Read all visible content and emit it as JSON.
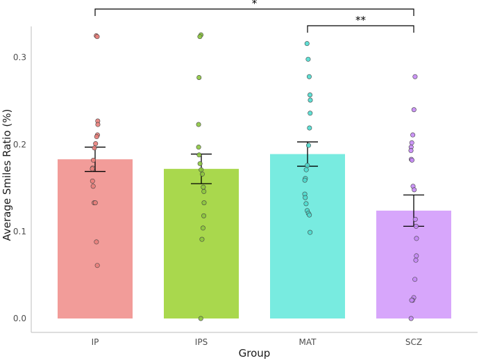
{
  "chart_data": {
    "type": "bar",
    "title": "",
    "xlabel": "Group",
    "ylabel": "Average Smiles Ratio (%)",
    "ylim": [
      0,
      0.335
    ],
    "yticks": [
      0.0,
      0.1,
      0.2,
      0.3
    ],
    "ytick_labels": [
      "0.0",
      "0.1",
      "0.2",
      "0.3"
    ],
    "grid": false,
    "categories": [
      "IP",
      "IPS",
      "MAT",
      "SCZ"
    ],
    "colors": [
      "#f29c99",
      "#a9d84d",
      "#78ebe0",
      "#d7a6fb"
    ],
    "point_colors": [
      "#e8807b",
      "#8cc63f",
      "#4fdccf",
      "#c58af5"
    ],
    "values": [
      0.183,
      0.172,
      0.189,
      0.124
    ],
    "error_low": [
      0.169,
      0.155,
      0.175,
      0.106
    ],
    "error_high": [
      0.197,
      0.189,
      0.203,
      0.142
    ],
    "points": [
      [
        0.325,
        0.324,
        0.227,
        0.223,
        0.211,
        0.209,
        0.201,
        0.196,
        0.182,
        0.173,
        0.172,
        0.158,
        0.152,
        0.133,
        0.133,
        0.088,
        0.061
      ],
      [
        0.326,
        0.324,
        0.277,
        0.223,
        0.197,
        0.188,
        0.178,
        0.171,
        0.166,
        0.151,
        0.146,
        0.133,
        0.118,
        0.104,
        0.091,
        0.0
      ],
      [
        0.316,
        0.298,
        0.278,
        0.257,
        0.251,
        0.236,
        0.219,
        0.199,
        0.176,
        0.171,
        0.161,
        0.159,
        0.143,
        0.139,
        0.132,
        0.124,
        0.121,
        0.119,
        0.099
      ],
      [
        0.278,
        0.24,
        0.211,
        0.202,
        0.197,
        0.193,
        0.183,
        0.182,
        0.152,
        0.148,
        0.114,
        0.106,
        0.092,
        0.072,
        0.067,
        0.045,
        0.024,
        0.021,
        0.021,
        0.0
      ]
    ],
    "significance": [
      {
        "from": "IP",
        "to": "SCZ",
        "label": "*"
      },
      {
        "from": "MAT",
        "to": "SCZ",
        "label": "**"
      }
    ]
  }
}
